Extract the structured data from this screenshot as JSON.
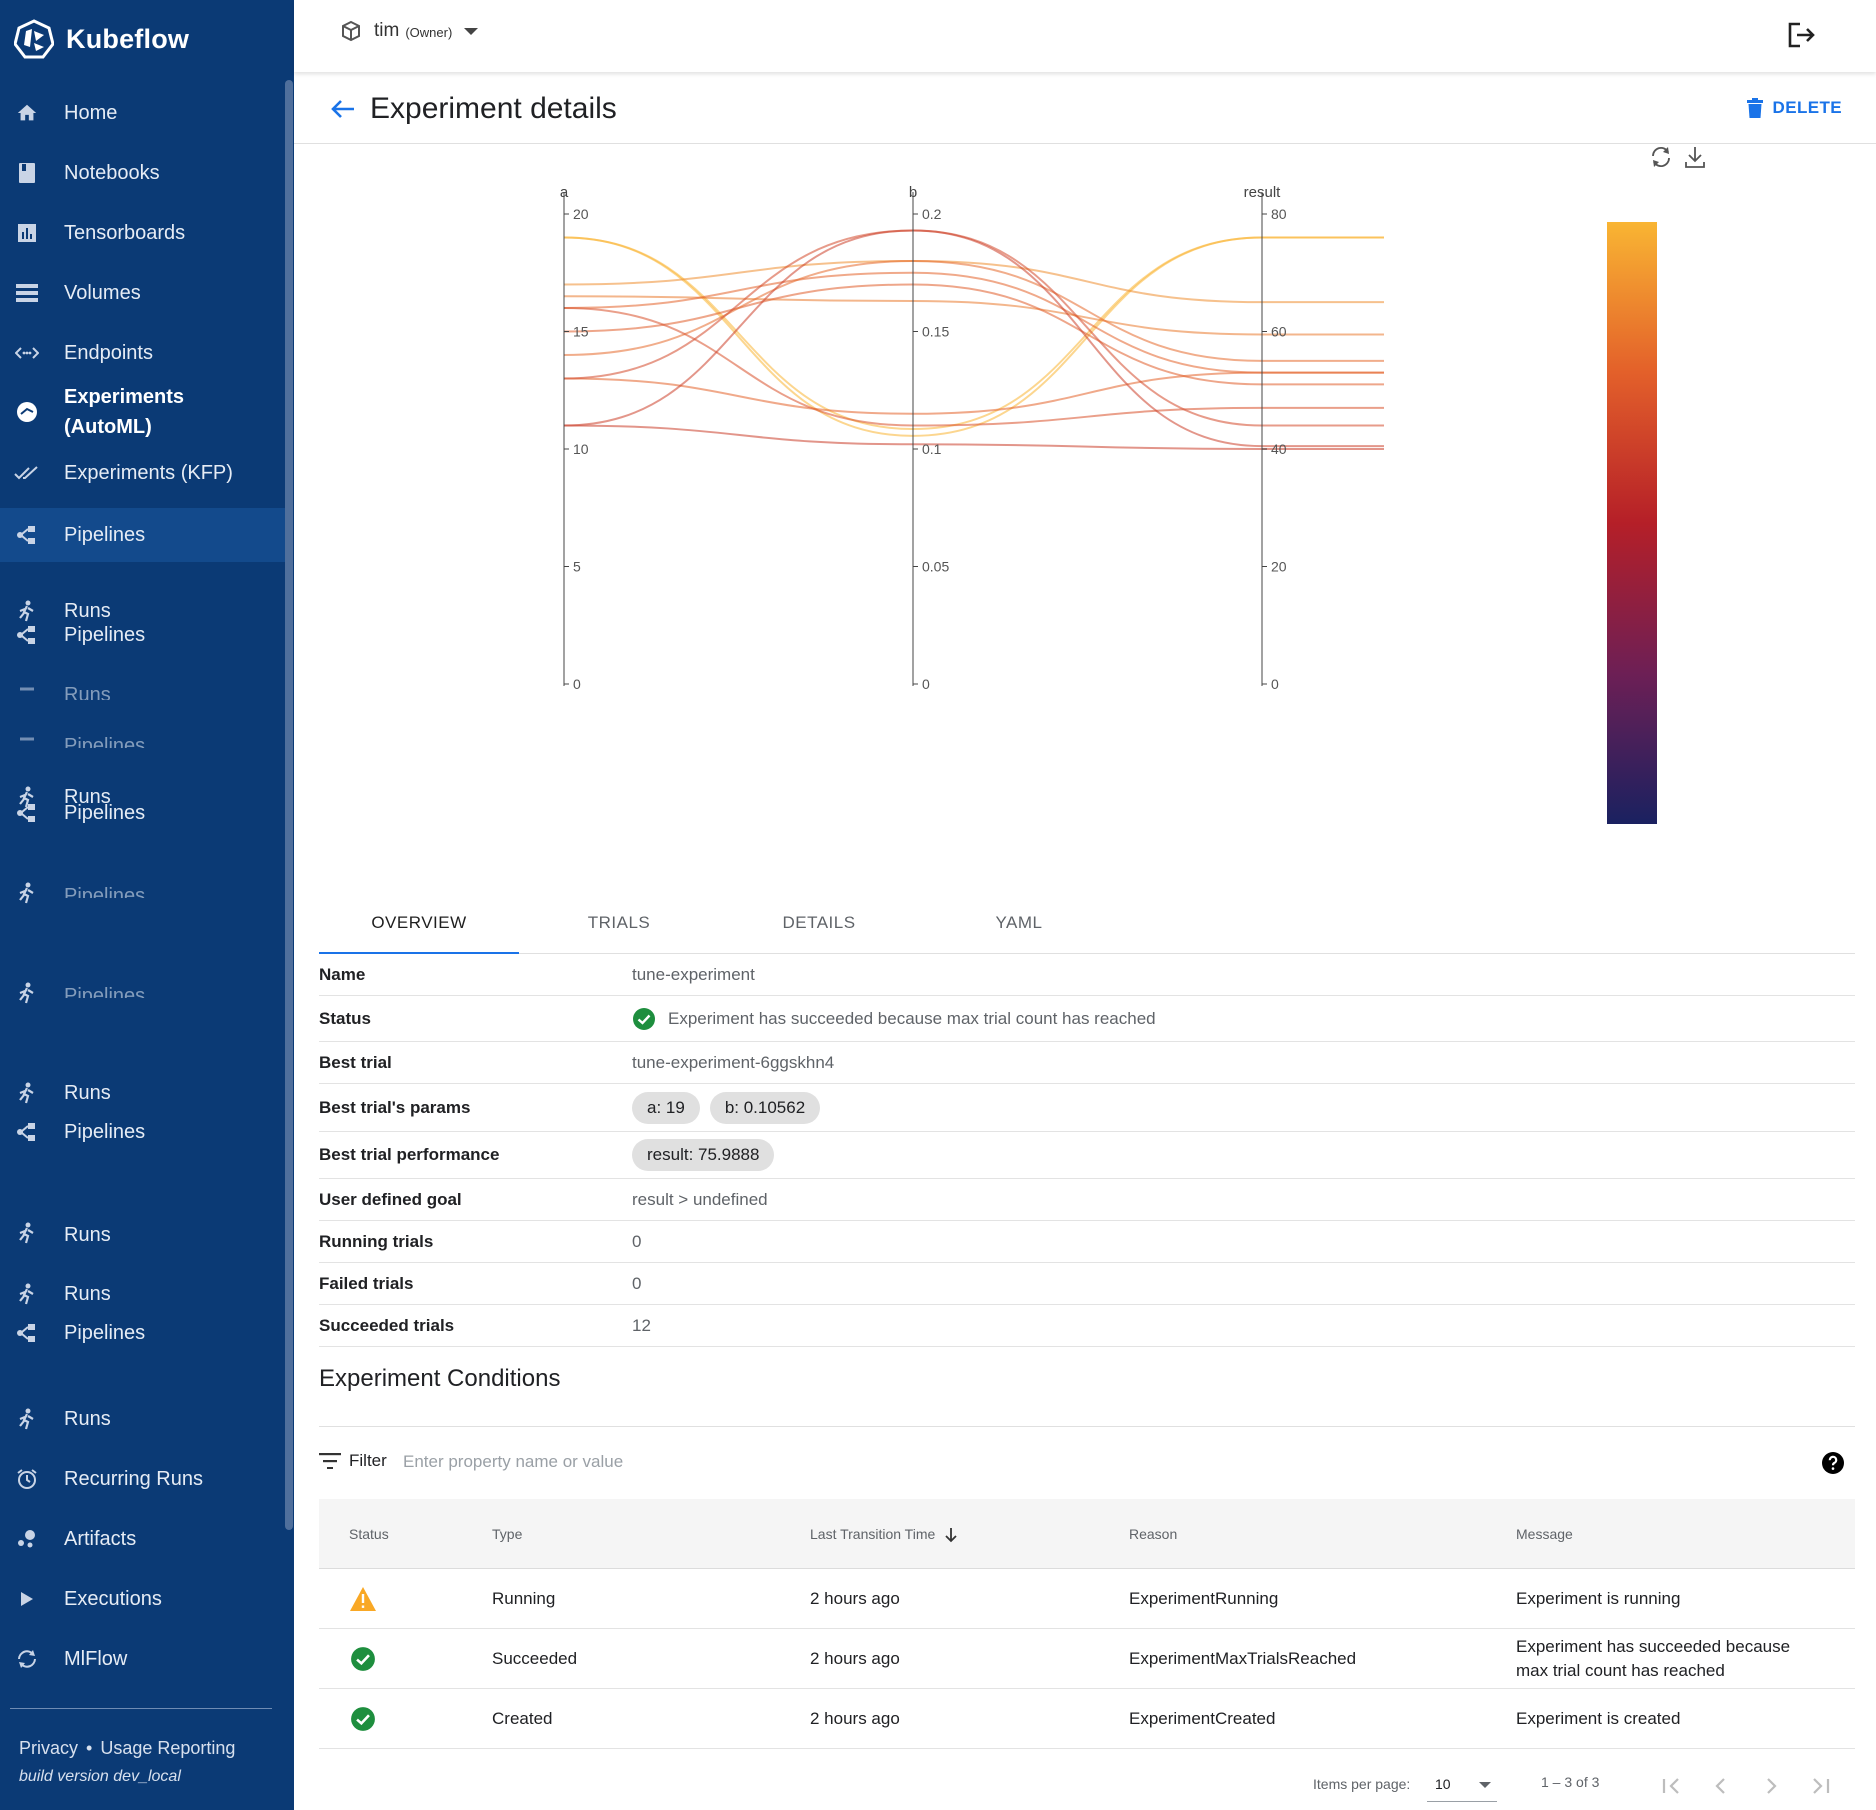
{
  "app": {
    "name": "Kubeflow"
  },
  "namespace": {
    "name": "tim",
    "role": "(Owner)"
  },
  "sidebar": {
    "items": [
      {
        "label": "Home",
        "icon": "home-icon"
      },
      {
        "label": "Notebooks",
        "icon": "book-icon"
      },
      {
        "label": "Tensorboards",
        "icon": "chart-icon"
      },
      {
        "label": "Volumes",
        "icon": "storage-icon"
      },
      {
        "label": "Endpoints",
        "icon": "endpoints-icon"
      },
      {
        "label": "Experiments (AutoML)",
        "icon": "automl-icon"
      },
      {
        "label": "Experiments (KFP)",
        "icon": "done-all-icon"
      },
      {
        "label": "Pipelines",
        "icon": "pipelines-icon"
      },
      {
        "label": "Runs",
        "icon": "runs-icon"
      },
      {
        "label": "Pipelines",
        "icon": "pipelines-icon"
      },
      {
        "label": "Runs",
        "icon": "runs-icon"
      },
      {
        "label": "Pipelines",
        "icon": "pipelines-icon"
      },
      {
        "label": "Pipelines",
        "icon": "runs-icon"
      },
      {
        "label": "Pipelines",
        "icon": "runs-icon"
      },
      {
        "label": "Runs",
        "icon": "runs-icon"
      },
      {
        "label": "Pipelines",
        "icon": "pipelines-icon"
      },
      {
        "label": "Runs",
        "icon": "runs-icon"
      },
      {
        "label": "Runs",
        "icon": "runs-icon"
      },
      {
        "label": "Pipelines",
        "icon": "pipelines-icon"
      },
      {
        "label": "Runs",
        "icon": "runs-icon"
      },
      {
        "label": "Recurring Runs",
        "icon": "alarm-icon"
      },
      {
        "label": "Artifacts",
        "icon": "artifacts-icon"
      },
      {
        "label": "Executions",
        "icon": "play-icon"
      },
      {
        "label": "MlFlow",
        "icon": "sync-icon"
      }
    ],
    "footer": {
      "privacy": "Privacy",
      "separator": "•",
      "usage": "Usage Reporting",
      "build": "build version dev_local"
    }
  },
  "page": {
    "title": "Experiment details",
    "delete_label": "DELETE"
  },
  "chart_data": {
    "type": "parallel_coordinates",
    "dimensions": [
      {
        "label": "a",
        "range": [
          0,
          20
        ],
        "ticks": [
          "0",
          "5",
          "10",
          "15",
          "20"
        ]
      },
      {
        "label": "b",
        "range": [
          0,
          0.2
        ],
        "ticks": [
          "0",
          "0.05",
          "0.1",
          "0.15",
          "0.2"
        ]
      },
      {
        "label": "result",
        "range": [
          0,
          80
        ],
        "ticks": [
          "0",
          "20",
          "40",
          "60",
          "80"
        ]
      }
    ],
    "color_by": "result",
    "colorscale": [
      "#1a2160",
      "#6d1f55",
      "#b51f28",
      "#e3602a",
      "#f9b533"
    ],
    "trials": [
      {
        "a": 19,
        "b": 0.1056,
        "result": 76.0
      },
      {
        "a": 19,
        "b": 0.1085,
        "result": 76.0
      },
      {
        "a": 17,
        "b": 0.18,
        "result": 65.0
      },
      {
        "a": 16.5,
        "b": 0.163,
        "result": 59.5
      },
      {
        "a": 16,
        "b": 0.175,
        "result": 53.0
      },
      {
        "a": 15,
        "b": 0.17,
        "result": 51.0
      },
      {
        "a": 14,
        "b": 0.18,
        "result": 55.0
      },
      {
        "a": 16,
        "b": 0.11,
        "result": 47.0
      },
      {
        "a": 13,
        "b": 0.115,
        "result": 53.0
      },
      {
        "a": 13,
        "b": 0.193,
        "result": 44.0
      },
      {
        "a": 11,
        "b": 0.193,
        "result": 40.5
      },
      {
        "a": 11,
        "b": 0.102,
        "result": 40.0
      }
    ]
  },
  "tabs": [
    "OVERVIEW",
    "TRIALS",
    "DETAILS",
    "YAML"
  ],
  "details": {
    "name": {
      "label": "Name",
      "value": "tune-experiment"
    },
    "status": {
      "label": "Status",
      "value": "Experiment has succeeded because max trial count has reached"
    },
    "best_trial": {
      "label": "Best trial",
      "value": "tune-experiment-6ggskhn4"
    },
    "best_params": {
      "label": "Best trial's params",
      "chips": [
        "a: 19",
        "b: 0.10562"
      ]
    },
    "best_perf": {
      "label": "Best trial performance",
      "chips": [
        "result: 75.9888"
      ]
    },
    "goal": {
      "label": "User defined goal",
      "value": "result > undefined"
    },
    "running": {
      "label": "Running trials",
      "value": "0"
    },
    "failed": {
      "label": "Failed trials",
      "value": "0"
    },
    "succeeded": {
      "label": "Succeeded trials",
      "value": "12"
    }
  },
  "conditions": {
    "title": "Experiment Conditions",
    "filter_label": "Filter",
    "filter_placeholder": "Enter property name or value",
    "columns": [
      "Status",
      "Type",
      "Last Transition Time",
      "Reason",
      "Message"
    ],
    "rows": [
      {
        "status": "warning",
        "type": "Running",
        "time": "2 hours ago",
        "reason": "ExperimentRunning",
        "message": "Experiment is running"
      },
      {
        "status": "success",
        "type": "Succeeded",
        "time": "2 hours ago",
        "reason": "ExperimentMaxTrialsReached",
        "message": "Experiment has succeeded because max trial count has reached"
      },
      {
        "status": "success",
        "type": "Created",
        "time": "2 hours ago",
        "reason": "ExperimentCreated",
        "message": "Experiment is created"
      }
    ]
  },
  "paginator": {
    "items_per_page_label": "Items per page:",
    "items_per_page": "10",
    "range": "1 – 3 of 3"
  }
}
